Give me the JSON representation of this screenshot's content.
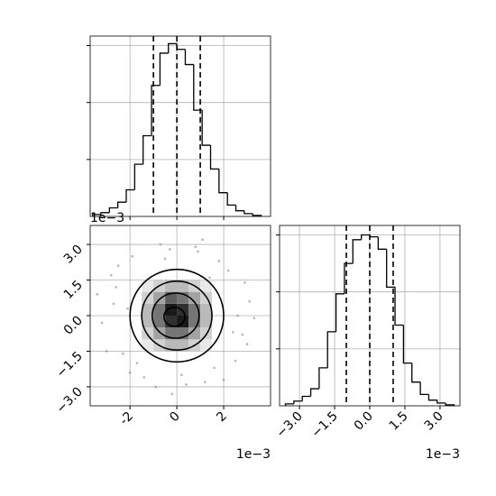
{
  "chart_data": [
    {
      "type": "histogram",
      "bins": [
        -3.6,
        -3.24,
        -2.88,
        -2.52,
        -2.16,
        -1.8,
        -1.44,
        -1.08,
        -0.72,
        -0.36,
        0,
        0.36,
        0.72,
        1.08,
        1.44,
        1.8,
        2.16,
        2.52,
        2.88,
        3.24,
        3.6
      ],
      "counts": [
        2,
        4,
        9,
        15,
        28,
        55,
        85,
        138,
        172,
        182,
        176,
        160,
        112,
        75,
        50,
        25,
        12,
        6,
        3,
        1
      ],
      "quantiles": [
        -1.0,
        0.0,
        1.0
      ],
      "xlim": [
        -3.7,
        4.0
      ],
      "xticks": [
        -2,
        0,
        2
      ],
      "ylim": [
        0,
        190
      ],
      "yticks": [
        60,
        120,
        180
      ],
      "grid": true,
      "color": "#000000"
    },
    {
      "type": "scatter",
      "x": [
        -2.6,
        2.8,
        -1.9,
        3.1,
        0.4,
        -3.2,
        2.2,
        -0.7,
        1.6,
        -2.3,
        0.9,
        -1.4,
        2.5,
        -2.8,
        1.1,
        -0.2,
        3.3,
        -1.1,
        0.6,
        -3.0,
        2.0,
        -2.1,
        1.8,
        -0.5,
        2.9,
        -1.7,
        0.2,
        -2.5,
        1.4,
        -0.9,
        2.6,
        -3.4,
        0.8,
        -1.3,
        3.0,
        -2.0,
        1.2,
        -0.3,
        2.4,
        -2.7
      ],
      "y": [
        1.2,
        -0.8,
        2.5,
        0.6,
        -2.9,
        -0.3,
        1.9,
        3.0,
        -2.2,
        -1.6,
        2.7,
        -2.6,
        -1.9,
        1.7,
        3.2,
        -3.3,
        -0.1,
        1.0,
        -1.2,
        -1.5,
        -2.7,
        0.3,
        2.3,
        2.4,
        1.4,
        -2.0,
        -2.5,
        2.1,
        1.6,
        -3.0,
        0.0,
        0.9,
        2.9,
        -0.6,
        -1.2,
        -2.4,
        -2.8,
        2.8,
        -0.7,
        0.5
      ],
      "density": {
        "xbins": [
          -1.5,
          -1.0,
          -0.5,
          0,
          0.5,
          1.0,
          1.5
        ],
        "ybins": [
          -1.5,
          -1.0,
          -0.5,
          0,
          0.5,
          1.0,
          1.5
        ],
        "counts": [
          [
            1,
            2,
            3,
            3,
            2,
            1
          ],
          [
            2,
            4,
            6,
            6,
            4,
            2
          ],
          [
            3,
            6,
            9,
            10,
            6,
            3
          ],
          [
            3,
            6,
            10,
            9,
            6,
            3
          ],
          [
            2,
            4,
            7,
            6,
            4,
            2
          ],
          [
            1,
            2,
            3,
            3,
            2,
            1
          ]
        ]
      },
      "contours": [
        {
          "cx": 0.0,
          "cy": 0.0,
          "rx": 2.0,
          "ry": 1.95
        },
        {
          "cx": 0.0,
          "cy": 0.0,
          "rx": 1.5,
          "ry": 1.45
        },
        {
          "cx": -0.05,
          "cy": 0.0,
          "rx": 1.0,
          "ry": 0.95
        },
        {
          "cx": -0.1,
          "cy": -0.05,
          "rx": 0.45,
          "ry": 0.4
        }
      ],
      "xlim": [
        -3.7,
        4.0
      ],
      "xticks": [
        -2,
        0,
        2
      ],
      "ylim": [
        -3.8,
        3.8
      ],
      "yticks": [
        {
          "value": -3.0,
          "label": "−3.0"
        },
        {
          "value": -1.5,
          "label": "−1.5"
        },
        {
          "value": 0.0,
          "label": "0.0"
        },
        {
          "value": 1.5,
          "label": "1.5"
        },
        {
          "value": 3.0,
          "label": "3.0"
        }
      ],
      "x_offset": "1e−3",
      "y_offset": "1e−3",
      "grid": true,
      "color": "#808080"
    },
    {
      "type": "histogram",
      "bins": [
        -3.6,
        -3.24,
        -2.88,
        -2.52,
        -2.16,
        -1.8,
        -1.44,
        -1.08,
        -0.72,
        -0.36,
        0,
        0.36,
        0.72,
        1.08,
        1.44,
        1.8,
        2.16,
        2.52,
        2.88,
        3.24,
        3.6
      ],
      "counts": [
        2,
        5,
        10,
        18,
        40,
        78,
        118,
        150,
        175,
        180,
        178,
        165,
        125,
        85,
        45,
        25,
        12,
        6,
        3,
        1
      ],
      "quantiles": [
        -1.0,
        0.0,
        1.0
      ],
      "xlim": [
        -3.85,
        3.85
      ],
      "xticks": [
        {
          "value": -3.0,
          "label": "−3.0"
        },
        {
          "value": -1.5,
          "label": "−1.5"
        },
        {
          "value": 0.0,
          "label": "0.0"
        },
        {
          "value": 1.5,
          "label": "1.5"
        },
        {
          "value": 3.0,
          "label": "3.0"
        }
      ],
      "ylim": [
        0,
        190
      ],
      "yticks": [
        60,
        120,
        180
      ],
      "x_offset": "1e−3",
      "grid": true,
      "color": "#000000"
    }
  ]
}
